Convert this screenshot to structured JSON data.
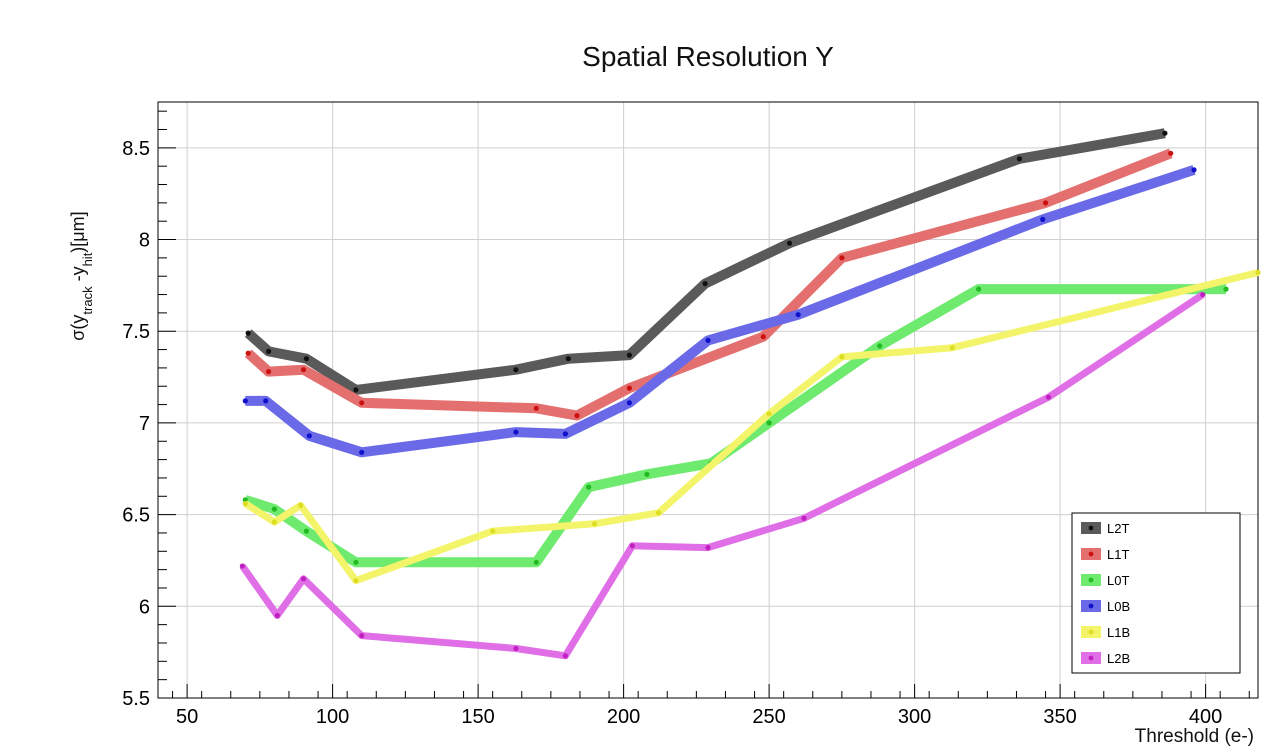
{
  "chart_data": {
    "type": "line",
    "title": "Spatial Resolution Y",
    "xlabel": "Threshold (e-)",
    "ylabel": {
      "parts": [
        {
          "text": "σ(y",
          "sub": false
        },
        {
          "text": "track",
          "sub": true
        },
        {
          "text": " -y",
          "sub": false
        },
        {
          "text": "hit",
          "sub": true
        },
        {
          "text": ")[μm]",
          "sub": false
        }
      ]
    },
    "xlim": [
      40,
      418
    ],
    "ylim": [
      5.5,
      8.75
    ],
    "xticks": [
      50,
      100,
      150,
      200,
      250,
      300,
      350,
      400
    ],
    "yticks": [
      5.5,
      6,
      6.5,
      7,
      7.5,
      8,
      8.5
    ],
    "ytick_labels": [
      "5.5",
      "6",
      "6.5",
      "7",
      "7.5",
      "8",
      "8.5"
    ],
    "grid": true,
    "legend_position": "bottom-right",
    "series": [
      {
        "name": "L2T",
        "color": "#5a5a5a",
        "marker_color": "#111111",
        "band": 10,
        "x": [
          71,
          78,
          91,
          108,
          163,
          181,
          202,
          228,
          257,
          336,
          386
        ],
        "y": [
          7.49,
          7.39,
          7.35,
          7.18,
          7.29,
          7.35,
          7.37,
          7.76,
          7.98,
          8.44,
          8.58
        ]
      },
      {
        "name": "L1T",
        "color": "#e46f6f",
        "marker_color": "#cc1111",
        "band": 10,
        "x": [
          71,
          78,
          90,
          110,
          170,
          184,
          202,
          248,
          275,
          345,
          388
        ],
        "y": [
          7.38,
          7.28,
          7.29,
          7.11,
          7.08,
          7.04,
          7.19,
          7.47,
          7.9,
          8.2,
          8.47
        ]
      },
      {
        "name": "L0T",
        "color": "#6eea6e",
        "marker_color": "#22bb22",
        "band": 10,
        "x": [
          70,
          80,
          91,
          108,
          170,
          188,
          208,
          230,
          250,
          288,
          322,
          407
        ],
        "y": [
          6.58,
          6.53,
          6.41,
          6.24,
          6.24,
          6.65,
          6.72,
          6.78,
          7.0,
          7.42,
          7.73,
          7.73
        ]
      },
      {
        "name": "L0B",
        "color": "#6a6ae8",
        "marker_color": "#1111cc",
        "band": 10,
        "x": [
          70,
          77,
          92,
          110,
          163,
          180,
          202,
          229,
          260,
          344,
          396
        ],
        "y": [
          7.12,
          7.12,
          6.93,
          6.84,
          6.95,
          6.94,
          7.11,
          7.45,
          7.59,
          8.11,
          8.38
        ]
      },
      {
        "name": "L1B",
        "color": "#f4f46a",
        "marker_color": "#dddd22",
        "band": 7,
        "x": [
          70,
          80,
          89,
          108,
          155,
          190,
          212,
          250,
          275,
          313,
          418
        ],
        "y": [
          6.56,
          6.46,
          6.55,
          6.14,
          6.41,
          6.45,
          6.51,
          7.05,
          7.36,
          7.41,
          7.82
        ]
      },
      {
        "name": "L2B",
        "color": "#e06ee6",
        "marker_color": "#c020c0",
        "band": 7,
        "x": [
          69,
          81,
          90,
          110,
          163,
          180,
          203,
          229,
          262,
          346,
          399
        ],
        "y": [
          6.22,
          5.95,
          6.15,
          5.84,
          5.77,
          5.73,
          6.33,
          6.32,
          6.48,
          7.14,
          7.7
        ]
      }
    ]
  }
}
